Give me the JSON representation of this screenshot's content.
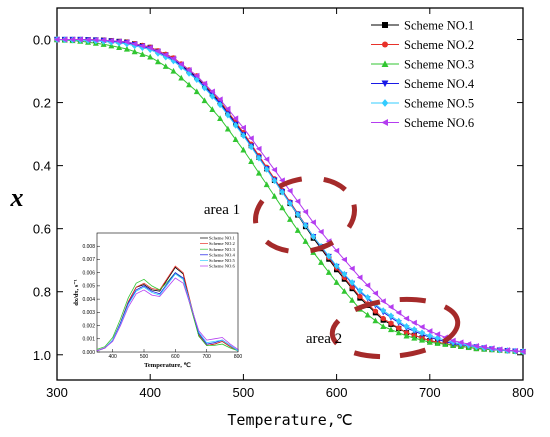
{
  "chart_data": [
    {
      "type": "line",
      "xlabel": "Temperature,℃",
      "ylabel": "x",
      "xlim": [
        300,
        800
      ],
      "ylim": [
        1.08,
        -0.1
      ],
      "y_inverted": true,
      "xticks": [
        300,
        400,
        500,
        600,
        700,
        800
      ],
      "yticks": [
        0.0,
        0.2,
        0.4,
        0.6,
        0.8,
        1.0
      ],
      "xtick_labels": [
        "300",
        "400",
        "500",
        "600",
        "700",
        "800"
      ],
      "ytick_labels": [
        "0.0",
        "0.2",
        "0.4",
        "0.6",
        "0.8",
        "1.0"
      ],
      "legend_position": "top-right",
      "grid": false,
      "x": [
        300,
        325,
        350,
        375,
        400,
        425,
        450,
        475,
        500,
        525,
        550,
        575,
        600,
        625,
        650,
        675,
        700,
        725,
        750,
        775,
        800
      ],
      "series": [
        {
          "name": "Scheme NO.1",
          "color": "#000000",
          "marker": "square",
          "values": [
            0.0,
            0.0,
            0.002,
            0.008,
            0.025,
            0.06,
            0.12,
            0.2,
            0.3,
            0.41,
            0.52,
            0.63,
            0.73,
            0.82,
            0.89,
            0.93,
            0.955,
            0.97,
            0.98,
            0.985,
            0.99
          ]
        },
        {
          "name": "Scheme NO.2",
          "color": "#e8312a",
          "marker": "circle",
          "values": [
            0.0,
            0.0,
            0.002,
            0.008,
            0.024,
            0.058,
            0.115,
            0.195,
            0.295,
            0.405,
            0.515,
            0.625,
            0.725,
            0.815,
            0.885,
            0.93,
            0.955,
            0.97,
            0.98,
            0.985,
            0.99
          ]
        },
        {
          "name": "Scheme NO.3",
          "color": "#31c631",
          "marker": "triangle-up",
          "values": [
            0.0,
            0.005,
            0.015,
            0.03,
            0.055,
            0.1,
            0.165,
            0.25,
            0.35,
            0.46,
            0.57,
            0.675,
            0.77,
            0.855,
            0.91,
            0.94,
            0.96,
            0.97,
            0.98,
            0.985,
            0.99
          ]
        },
        {
          "name": "Scheme NO.4",
          "color": "#1a1ae6",
          "marker": "triangle-down",
          "values": [
            0.0,
            0.0,
            0.003,
            0.01,
            0.028,
            0.064,
            0.123,
            0.203,
            0.302,
            0.41,
            0.518,
            0.625,
            0.72,
            0.8,
            0.865,
            0.915,
            0.945,
            0.965,
            0.975,
            0.985,
            0.99
          ]
        },
        {
          "name": "Scheme NO.5",
          "color": "#33ccff",
          "marker": "diamond",
          "values": [
            0.0,
            0.002,
            0.006,
            0.014,
            0.032,
            0.068,
            0.127,
            0.207,
            0.305,
            0.412,
            0.52,
            0.625,
            0.718,
            0.797,
            0.86,
            0.91,
            0.94,
            0.96,
            0.975,
            0.985,
            0.99
          ]
        },
        {
          "name": "Scheme NO.6",
          "color": "#b43cf0",
          "marker": "triangle-left",
          "values": [
            0.0,
            0.0,
            0.002,
            0.008,
            0.026,
            0.06,
            0.115,
            0.19,
            0.28,
            0.38,
            0.48,
            0.58,
            0.67,
            0.755,
            0.83,
            0.885,
            0.925,
            0.955,
            0.972,
            0.983,
            0.99
          ]
        }
      ],
      "annotations": [
        {
          "text": "area 1",
          "x": 505,
          "y": 0.52
        },
        {
          "text": "area 2",
          "x": 635,
          "y": 0.94
        }
      ],
      "highlight_color": "#a52a2a"
    },
    {
      "type": "line",
      "xlabel": "Temperature, ℃",
      "ylabel": "dx/dτ, s⁻¹",
      "xlim": [
        350,
        800
      ],
      "ylim": [
        0,
        0.009
      ],
      "xticks": [
        400,
        500,
        600,
        700,
        800
      ],
      "xtick_labels": [
        "400",
        "500",
        "600",
        "700",
        "800"
      ],
      "yticks": [
        0.0,
        0.001,
        0.002,
        0.003,
        0.004,
        0.005,
        0.006,
        0.007,
        0.008
      ],
      "ytick_labels": [
        "0.000",
        "0.001",
        "0.002",
        "0.003",
        "0.004",
        "0.005",
        "0.006",
        "0.007",
        "0.008"
      ],
      "legend_position": "top-right",
      "x": [
        350,
        375,
        400,
        425,
        450,
        475,
        500,
        525,
        550,
        575,
        600,
        625,
        650,
        675,
        700,
        725,
        750,
        775,
        800
      ],
      "series": [
        {
          "name": "Scheme NO.1",
          "color": "#000000",
          "values": [
            0.0001,
            0.0003,
            0.0009,
            0.0022,
            0.0038,
            0.0049,
            0.0051,
            0.0047,
            0.0046,
            0.0055,
            0.0064,
            0.0059,
            0.0035,
            0.0012,
            0.0005,
            0.0006,
            0.0008,
            0.0004,
            0.0001
          ]
        },
        {
          "name": "Scheme NO.2",
          "color": "#e8312a",
          "values": [
            0.0001,
            0.0003,
            0.0009,
            0.0022,
            0.0038,
            0.0049,
            0.0052,
            0.0048,
            0.0047,
            0.0056,
            0.0065,
            0.006,
            0.0036,
            0.0013,
            0.0005,
            0.0006,
            0.0008,
            0.0004,
            0.0001
          ]
        },
        {
          "name": "Scheme NO.3",
          "color": "#31c631",
          "values": [
            0.0002,
            0.0004,
            0.0011,
            0.0025,
            0.0041,
            0.0052,
            0.0055,
            0.005,
            0.0047,
            0.0053,
            0.006,
            0.0055,
            0.0033,
            0.0012,
            0.0005,
            0.0005,
            0.0006,
            0.0003,
            0.0001
          ]
        },
        {
          "name": "Scheme NO.4",
          "color": "#1a1ae6",
          "values": [
            0.0001,
            0.0003,
            0.0009,
            0.0022,
            0.0037,
            0.0047,
            0.005,
            0.0046,
            0.0044,
            0.0052,
            0.006,
            0.0056,
            0.0035,
            0.0014,
            0.0006,
            0.0007,
            0.0009,
            0.0005,
            0.0001
          ]
        },
        {
          "name": "Scheme NO.5",
          "color": "#33ccff",
          "values": [
            0.0001,
            0.0003,
            0.0009,
            0.0021,
            0.0036,
            0.0046,
            0.0049,
            0.0045,
            0.0043,
            0.0051,
            0.0059,
            0.0055,
            0.0035,
            0.0015,
            0.0007,
            0.0008,
            0.0009,
            0.0005,
            0.0001
          ]
        },
        {
          "name": "Scheme NO.6",
          "color": "#b43cf0",
          "values": [
            0.0001,
            0.0003,
            0.0008,
            0.002,
            0.0034,
            0.0044,
            0.0047,
            0.0043,
            0.0042,
            0.0049,
            0.0056,
            0.0052,
            0.0034,
            0.0016,
            0.0009,
            0.001,
            0.0011,
            0.0006,
            0.0002
          ]
        }
      ]
    }
  ]
}
